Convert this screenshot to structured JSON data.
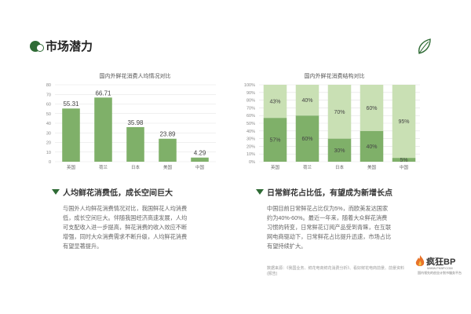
{
  "page": {
    "title": "市场潜力",
    "left_heading": "人均鲜花消费低，成长空间巨大",
    "left_text": [
      "与国外人均鲜花消费情况对比，我国鲜花人均消费",
      "低，成长空间巨大。伴随我国经济高速发展，人均",
      "可支配收入进一步提高，鲜花消费的收入效应不断",
      "增强，同时大众消费需求不断升级，人均鲜花消费",
      "有望显著提升。"
    ],
    "right_heading": "日常鲜花占比低，有望成为新增长点",
    "right_text": [
      "中国目前日常鲜花占比仅为5%，而欧美发达国家",
      "约为40%-60%。最近一年来，随着大众鲜花消费",
      "习惯的转变，日常鲜花订阅产品受到青睐，在互联",
      "网电商驱动下，日常鲜花占比提升迅速，市场占比",
      "有望持续扩大。"
    ],
    "source": "数据来源：《我国业务、鲜花电商鲜花消费分析》、看好鲜花电商前景、前景资料(报告)"
  },
  "brand": {
    "name": "疯狂BP",
    "url": "WWW.FKBP.COM",
    "tagline": "国内领先的创业计划书服务平台"
  },
  "colors": {
    "accent": "#2f6b35",
    "bar_dark": "#7fb069",
    "bar_light": "#c9e0b4",
    "grid": "#e2e2e2"
  },
  "icons": {
    "logo": "circle-logo-icon",
    "leaf": "leaf-icon",
    "heading_marker": "triangle-icon",
    "brand": "flame-logo-icon"
  },
  "chart_data": [
    {
      "type": "bar",
      "title": "国内外鲜花消费人均情况对比",
      "categories": [
        "英国",
        "荷兰",
        "日本",
        "美国",
        "中国"
      ],
      "values": [
        55.31,
        66.71,
        35.98,
        23.89,
        4.29
      ],
      "data_labels": [
        "55.31",
        "66.71",
        "35.98",
        "23.89",
        "4.29"
      ],
      "ylim": [
        0,
        80
      ],
      "yticks": [
        0,
        10,
        20,
        30,
        40,
        50,
        60,
        70,
        80
      ],
      "grid": true
    },
    {
      "type": "bar",
      "stacked": true,
      "title": "国内外鲜花消费结构对比",
      "categories": [
        "英国",
        "荷兰",
        "日本",
        "美国",
        "中国"
      ],
      "series": [
        {
          "values": [
            57,
            60,
            30,
            40,
            5
          ],
          "labels": [
            "57%",
            "60%",
            "30%",
            "40%",
            "5%"
          ]
        },
        {
          "values": [
            43,
            40,
            70,
            60,
            95
          ],
          "labels": [
            "43%",
            "40%",
            "70%",
            "60%",
            "95%"
          ]
        }
      ],
      "ylim": [
        0,
        100
      ],
      "yticks": [
        "0%",
        "10%",
        "20%",
        "30%",
        "40%",
        "50%",
        "60%",
        "70%",
        "80%",
        "90%",
        "100%"
      ],
      "grid": true
    }
  ]
}
